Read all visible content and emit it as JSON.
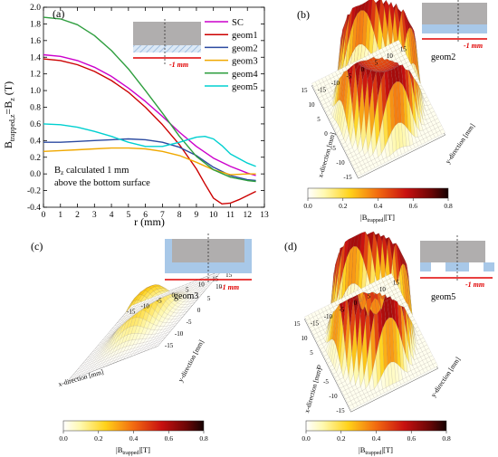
{
  "panel_a": {
    "label": "(a)",
    "ylabel_main": "B",
    "ylabel_sub": "trapped,z",
    "ylabel_rest": "=B",
    "ylabel_sub2": "z",
    "ylabel_unit": " (T)",
    "xlabel": "r (mm)",
    "note_line1_pre": "B",
    "note_line1_sub": "z",
    "note_line1_post": " calculated 1 mm",
    "note_line2": "above the bottom surface",
    "inset_label": "-1 mm"
  },
  "panel_b": {
    "label": "(b)",
    "geom_label": "geom2",
    "inset_label": "-1 mm"
  },
  "panel_c": {
    "label": "(c)",
    "geom_label": "geom3",
    "inset_label": "-1 mm"
  },
  "panel_d": {
    "label": "(d)",
    "geom_label": "geom5",
    "inset_label": "-1 mm"
  },
  "surface_axes": {
    "x_label": "x-direction [mm]",
    "y_label": "y-direction [mm]",
    "ticks": [
      "-15",
      "-10",
      "-5",
      "0",
      "5",
      "10",
      "15"
    ]
  },
  "colorbar": {
    "label_pre": "|B",
    "label_sub": "trapped",
    "label_post": "|[T]",
    "ticks": [
      "0.0",
      "0.2",
      "0.4",
      "0.6",
      "0.8"
    ]
  },
  "colors": {
    "SC": "#cc00cc",
    "geom1": "#cc0000",
    "geom2": "#2b4aa0",
    "geom3": "#f0a800",
    "geom4": "#2e9e3e",
    "geom5": "#00d0d0",
    "inset_red": "#e00000",
    "inset_gray": "#b0aeae",
    "inset_blue": "#a8c8e8"
  },
  "chart_data": [
    {
      "type": "line",
      "title": "",
      "xlabel": "r (mm)",
      "ylabel": "Btrapped,z=Bz (T)",
      "xlim": [
        0,
        13
      ],
      "ylim": [
        -0.4,
        2.0
      ],
      "xticks": [
        0,
        1,
        2,
        3,
        4,
        5,
        6,
        7,
        8,
        9,
        10,
        11,
        12,
        13
      ],
      "yticks": [
        -0.4,
        -0.2,
        0.0,
        0.2,
        0.4,
        0.6,
        0.8,
        1.0,
        1.2,
        1.4,
        1.6,
        1.8,
        2.0
      ],
      "legend_position": "top-right",
      "grid": false,
      "series": [
        {
          "name": "SC",
          "color": "#cc00cc",
          "x": [
            0,
            1,
            2,
            3,
            4,
            5,
            6,
            7,
            8,
            9,
            10,
            11,
            12,
            12.5
          ],
          "y": [
            1.43,
            1.41,
            1.36,
            1.28,
            1.17,
            1.03,
            0.87,
            0.69,
            0.5,
            0.33,
            0.19,
            0.09,
            0.01,
            -0.02
          ]
        },
        {
          "name": "geom1",
          "color": "#cc0000",
          "x": [
            0,
            1,
            2,
            3,
            4,
            5,
            6,
            7,
            8,
            9,
            9.5,
            10,
            10.5,
            11,
            11.5,
            12,
            12.5
          ],
          "y": [
            1.38,
            1.36,
            1.31,
            1.23,
            1.12,
            0.98,
            0.8,
            0.59,
            0.35,
            0.06,
            -0.12,
            -0.29,
            -0.36,
            -0.35,
            -0.31,
            -0.26,
            -0.21
          ]
        },
        {
          "name": "geom2",
          "color": "#2b4aa0",
          "x": [
            0,
            1,
            2,
            3,
            4,
            5,
            6,
            7,
            8,
            9,
            10,
            11,
            12,
            12.5
          ],
          "y": [
            0.38,
            0.38,
            0.39,
            0.4,
            0.41,
            0.42,
            0.41,
            0.38,
            0.32,
            0.22,
            0.08,
            -0.02,
            -0.07,
            -0.08
          ]
        },
        {
          "name": "geom3",
          "color": "#f0a800",
          "x": [
            0,
            1,
            2,
            3,
            4,
            5,
            6,
            7,
            8,
            9,
            10,
            11,
            12,
            12.5
          ],
          "y": [
            0.27,
            0.28,
            0.29,
            0.3,
            0.31,
            0.31,
            0.3,
            0.27,
            0.22,
            0.14,
            0.05,
            -0.01,
            0.0,
            0.0
          ]
        },
        {
          "name": "geom4",
          "color": "#2e9e3e",
          "x": [
            0,
            1,
            2,
            3,
            4,
            5,
            6,
            7,
            8,
            9,
            10,
            11,
            12,
            12.5
          ],
          "y": [
            1.88,
            1.86,
            1.79,
            1.66,
            1.48,
            1.26,
            1.0,
            0.73,
            0.45,
            0.21,
            0.05,
            -0.04,
            -0.08,
            -0.09
          ]
        },
        {
          "name": "geom5",
          "color": "#00d0d0",
          "x": [
            0,
            1,
            2,
            3,
            4,
            5,
            6,
            7,
            8,
            9,
            9.5,
            10,
            10.5,
            11,
            12,
            12.5
          ],
          "y": [
            0.6,
            0.59,
            0.56,
            0.51,
            0.45,
            0.38,
            0.33,
            0.33,
            0.38,
            0.44,
            0.45,
            0.42,
            0.34,
            0.24,
            0.13,
            0.09
          ]
        }
      ]
    },
    {
      "type": "heatmap",
      "title": "",
      "geometry": "geom2",
      "xlabel": "x-direction [mm]",
      "ylabel": "y-direction [mm]",
      "xlim": [
        -15,
        15
      ],
      "ylim": [
        -15,
        15
      ],
      "colorbar_range": [
        0.0,
        0.8
      ],
      "colorbar_label": "|Btrapped|[T]",
      "peak_value": 0.62,
      "shape": "ring"
    },
    {
      "type": "heatmap",
      "title": "",
      "geometry": "geom3",
      "xlabel": "x-direction [mm]",
      "ylabel": "y-direction [mm]",
      "xlim": [
        -15,
        15
      ],
      "ylim": [
        -15,
        15
      ],
      "colorbar_range": [
        0.0,
        0.8
      ],
      "colorbar_label": "|Btrapped|[T]",
      "peak_value": 0.32,
      "shape": "dome"
    },
    {
      "type": "heatmap",
      "title": "",
      "geometry": "geom5",
      "xlabel": "x-direction [mm]",
      "ylabel": "y-direction [mm]",
      "xlim": [
        -15,
        15
      ],
      "ylim": [
        -15,
        15
      ],
      "colorbar_range": [
        0.0,
        0.8
      ],
      "colorbar_label": "|Btrapped|[T]",
      "peak_value": 0.62,
      "shape": "ring-with-central-peak"
    }
  ]
}
